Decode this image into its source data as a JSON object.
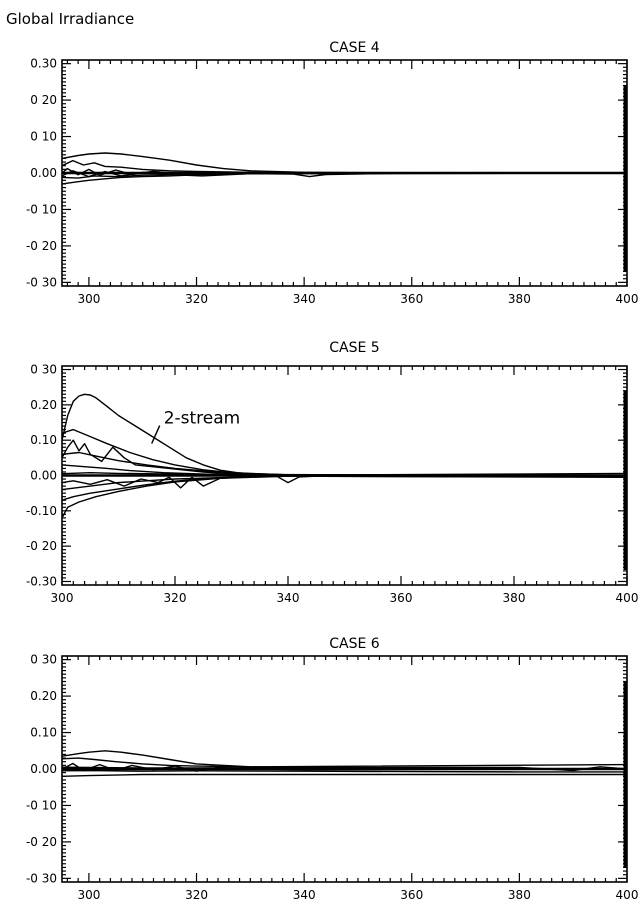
{
  "figure_title": "Global Irradiance",
  "chart_data": [
    {
      "type": "line",
      "title": "CASE 4",
      "xlim": [
        295,
        400
      ],
      "ylim": [
        -0.31,
        0.31
      ],
      "xticks": [
        300,
        320,
        340,
        360,
        380,
        400
      ],
      "yticks": [
        0.3,
        0.2,
        0.1,
        0.0,
        -0.1,
        -0.2,
        -0.3
      ],
      "ytick_labels": [
        "0.30",
        "0 20",
        "0 10",
        "0.00",
        "-0 10",
        "-0 20",
        "-0 30"
      ],
      "series": [
        {
          "x": [
            295,
            298,
            300,
            303,
            306,
            310,
            315,
            320,
            325,
            330,
            340,
            360,
            400
          ],
          "y": [
            0.04,
            0.048,
            0.052,
            0.055,
            0.052,
            0.045,
            0.035,
            0.022,
            0.012,
            0.006,
            0.002,
            0.0,
            0.0
          ]
        },
        {
          "x": [
            295,
            297,
            299,
            301,
            303,
            306,
            310,
            315,
            320,
            330,
            340,
            400
          ],
          "y": [
            0.02,
            0.034,
            0.022,
            0.028,
            0.018,
            0.016,
            0.01,
            0.006,
            0.004,
            0.002,
            0.0,
            0.0
          ]
        },
        {
          "x": [
            295,
            296,
            298,
            300,
            302,
            305,
            308,
            312,
            318,
            322,
            330,
            340,
            400
          ],
          "y": [
            0.0,
            0.012,
            -0.005,
            0.01,
            -0.006,
            0.008,
            -0.004,
            0.005,
            -0.006,
            0.002,
            0.0,
            -0.002,
            0.0
          ]
        },
        {
          "x": [
            295,
            297,
            300,
            303,
            306,
            310,
            316,
            321,
            330,
            338,
            341,
            344,
            360,
            400
          ],
          "y": [
            -0.008,
            0.006,
            -0.01,
            0.004,
            -0.008,
            0.002,
            -0.005,
            -0.008,
            -0.002,
            -0.003,
            -0.01,
            -0.004,
            0.0,
            0.0
          ]
        },
        {
          "x": [
            295,
            298,
            300,
            303,
            306,
            310,
            315,
            320,
            330,
            340,
            400
          ],
          "y": [
            -0.03,
            -0.024,
            -0.02,
            -0.016,
            -0.012,
            -0.01,
            -0.008,
            -0.005,
            -0.002,
            0.0,
            0.0
          ]
        },
        {
          "x": [
            295,
            298,
            301,
            305,
            310,
            316,
            322,
            330,
            340,
            400
          ],
          "y": [
            -0.012,
            -0.014,
            -0.008,
            -0.01,
            -0.006,
            -0.004,
            -0.003,
            -0.002,
            -0.001,
            0.0
          ]
        }
      ]
    },
    {
      "type": "line",
      "title": "CASE 5",
      "xlim": [
        300,
        400
      ],
      "ylim": [
        -0.31,
        0.31
      ],
      "xticks": [
        300,
        320,
        340,
        360,
        380,
        400
      ],
      "yticks": [
        0.3,
        0.2,
        0.1,
        0.0,
        -0.1,
        -0.2,
        -0.3
      ],
      "ytick_labels": [
        "0 30",
        "0.20",
        "0.10",
        "0.00",
        "-0.10",
        "-0 20",
        "-0.30"
      ],
      "annotations": [
        {
          "text": "2-stream",
          "x": 318,
          "y": 0.13
        }
      ],
      "series": [
        {
          "x": [
            300,
            301,
            302,
            303,
            304,
            305,
            306,
            308,
            310,
            313,
            316,
            319,
            322,
            325,
            328,
            331,
            334,
            338,
            345,
            360,
            400
          ],
          "y": [
            0.1,
            0.17,
            0.21,
            0.225,
            0.23,
            0.228,
            0.22,
            0.195,
            0.17,
            0.14,
            0.11,
            0.08,
            0.05,
            0.03,
            0.015,
            0.008,
            0.004,
            0.002,
            0.0,
            0.0,
            0.0
          ]
        },
        {
          "x": [
            300,
            302,
            305,
            308,
            312,
            316,
            320,
            325,
            330,
            340,
            400
          ],
          "y": [
            0.12,
            0.13,
            0.11,
            0.09,
            0.065,
            0.045,
            0.03,
            0.016,
            0.008,
            0.002,
            0.0
          ]
        },
        {
          "x": [
            300,
            301,
            302,
            303,
            304,
            305,
            307,
            309,
            311,
            313,
            316,
            320,
            325,
            330,
            340,
            400
          ],
          "y": [
            0.05,
            0.08,
            0.1,
            0.07,
            0.09,
            0.06,
            0.04,
            0.08,
            0.05,
            0.03,
            0.025,
            0.018,
            0.01,
            0.005,
            0.002,
            0.0
          ]
        },
        {
          "x": [
            300,
            303,
            306,
            310,
            315,
            320,
            326,
            332,
            340,
            400
          ],
          "y": [
            0.06,
            0.065,
            0.055,
            0.042,
            0.03,
            0.02,
            0.012,
            0.006,
            0.002,
            0.0
          ]
        },
        {
          "x": [
            300,
            304,
            308,
            312,
            318,
            325,
            335,
            400
          ],
          "y": [
            0.03,
            0.025,
            0.02,
            0.014,
            0.008,
            0.004,
            0.001,
            0.0
          ]
        },
        {
          "x": [
            300,
            302,
            305,
            308,
            311,
            314,
            317,
            319,
            321,
            323,
            325,
            328,
            332,
            338,
            340,
            342,
            345,
            360,
            400
          ],
          "y": [
            -0.02,
            -0.015,
            -0.025,
            -0.012,
            -0.03,
            -0.01,
            -0.02,
            -0.005,
            -0.035,
            -0.005,
            -0.03,
            -0.008,
            -0.004,
            -0.002,
            -0.02,
            -0.004,
            -0.002,
            -0.002,
            -0.002
          ]
        },
        {
          "x": [
            300,
            302,
            305,
            310,
            315,
            320,
            326,
            332,
            340,
            400
          ],
          "y": [
            -0.07,
            -0.06,
            -0.05,
            -0.038,
            -0.026,
            -0.016,
            -0.008,
            -0.004,
            -0.001,
            -0.003
          ]
        },
        {
          "x": [
            300,
            301,
            303,
            306,
            310,
            315,
            320,
            328,
            340,
            400
          ],
          "y": [
            -0.12,
            -0.09,
            -0.075,
            -0.06,
            -0.045,
            -0.03,
            -0.018,
            -0.008,
            -0.002,
            -0.004
          ]
        },
        {
          "x": [
            300,
            305,
            310,
            320,
            330,
            340,
            400
          ],
          "y": [
            -0.04,
            -0.03,
            -0.02,
            -0.01,
            -0.005,
            -0.002,
            -0.005
          ]
        },
        {
          "x": [
            300,
            305,
            310,
            320,
            330,
            350,
            380,
            400
          ],
          "y": [
            0.005,
            0.008,
            0.006,
            0.004,
            0.003,
            0.002,
            0.004,
            0.006
          ]
        }
      ]
    },
    {
      "type": "line",
      "title": "CASE 6",
      "xlim": [
        295,
        400
      ],
      "ylim": [
        -0.31,
        0.31
      ],
      "xticks": [
        300,
        320,
        340,
        360,
        380,
        400
      ],
      "yticks": [
        0.3,
        0.2,
        0.1,
        0.0,
        -0.1,
        -0.2,
        -0.3
      ],
      "ytick_labels": [
        "0 30",
        "0.20",
        "0.10",
        "0.00",
        "-0 10",
        "-0 20",
        "-0 30"
      ],
      "series": [
        {
          "x": [
            295,
            298,
            300,
            303,
            306,
            310,
            315,
            320,
            330,
            340,
            400
          ],
          "y": [
            0.035,
            0.042,
            0.046,
            0.05,
            0.046,
            0.038,
            0.026,
            0.014,
            0.006,
            0.003,
            0.0
          ]
        },
        {
          "x": [
            295,
            298,
            301,
            305,
            310,
            315,
            320,
            330,
            400
          ],
          "y": [
            0.028,
            0.03,
            0.026,
            0.02,
            0.014,
            0.01,
            0.008,
            0.006,
            0.012
          ]
        },
        {
          "x": [
            295,
            297,
            299,
            302,
            305,
            308,
            312,
            316,
            320,
            324,
            330,
            340,
            400
          ],
          "y": [
            0.0,
            0.015,
            -0.004,
            0.012,
            -0.004,
            0.01,
            -0.002,
            0.008,
            -0.006,
            0.004,
            0.0,
            -0.002,
            0.0
          ]
        },
        {
          "x": [
            295,
            300,
            310,
            320,
            340,
            360,
            380,
            400
          ],
          "y": [
            -0.02,
            -0.018,
            -0.015,
            -0.015,
            -0.015,
            -0.015,
            -0.015,
            -0.015
          ]
        },
        {
          "x": [
            295,
            300,
            310,
            320,
            340,
            360,
            380,
            400
          ],
          "y": [
            -0.005,
            -0.004,
            -0.006,
            -0.005,
            -0.006,
            -0.007,
            -0.008,
            -0.008
          ]
        },
        {
          "x": [
            295,
            300,
            310,
            320,
            340,
            360,
            380,
            390,
            395,
            400
          ],
          "y": [
            0.005,
            0.004,
            0.003,
            0.003,
            0.004,
            0.004,
            0.004,
            -0.004,
            0.006,
            0.0
          ]
        }
      ]
    }
  ]
}
